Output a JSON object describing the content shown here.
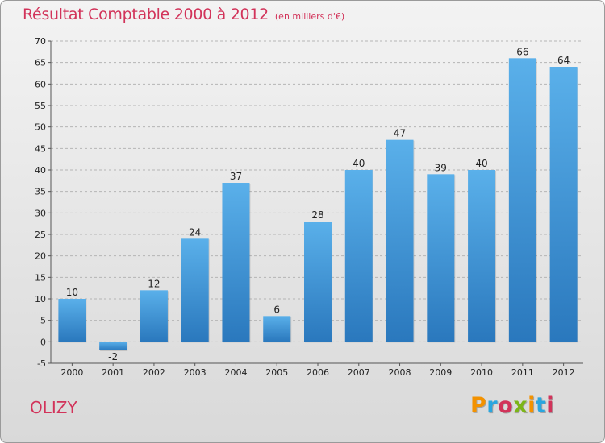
{
  "title": "Résultat Comptable 2000 à 2012",
  "subtitle": "(en milliers d'€)",
  "place": "OLIZY",
  "logo": {
    "text": "Proxiti",
    "colors": [
      "#f39200",
      "#2aa6df",
      "#d2335a",
      "#7cb518",
      "#f39200",
      "#2aa6df",
      "#d2335a"
    ]
  },
  "colors": {
    "bar": "#4aa3e2",
    "bar_dark": "#2c7cc0",
    "title": "#d2335a",
    "grid": "#b5b5b5"
  },
  "chart_data": {
    "type": "bar",
    "categories": [
      "2000",
      "2001",
      "2002",
      "2003",
      "2004",
      "2005",
      "2006",
      "2007",
      "2008",
      "2009",
      "2010",
      "2011",
      "2012"
    ],
    "values": [
      10,
      -2,
      12,
      24,
      37,
      6,
      28,
      40,
      47,
      39,
      40,
      66,
      64
    ],
    "ylim": [
      -5,
      70
    ],
    "yticks": [
      -5,
      0,
      5,
      10,
      15,
      20,
      25,
      30,
      35,
      40,
      45,
      50,
      55,
      60,
      65,
      70
    ],
    "grid": "horizontal dashed",
    "legend": "none"
  }
}
